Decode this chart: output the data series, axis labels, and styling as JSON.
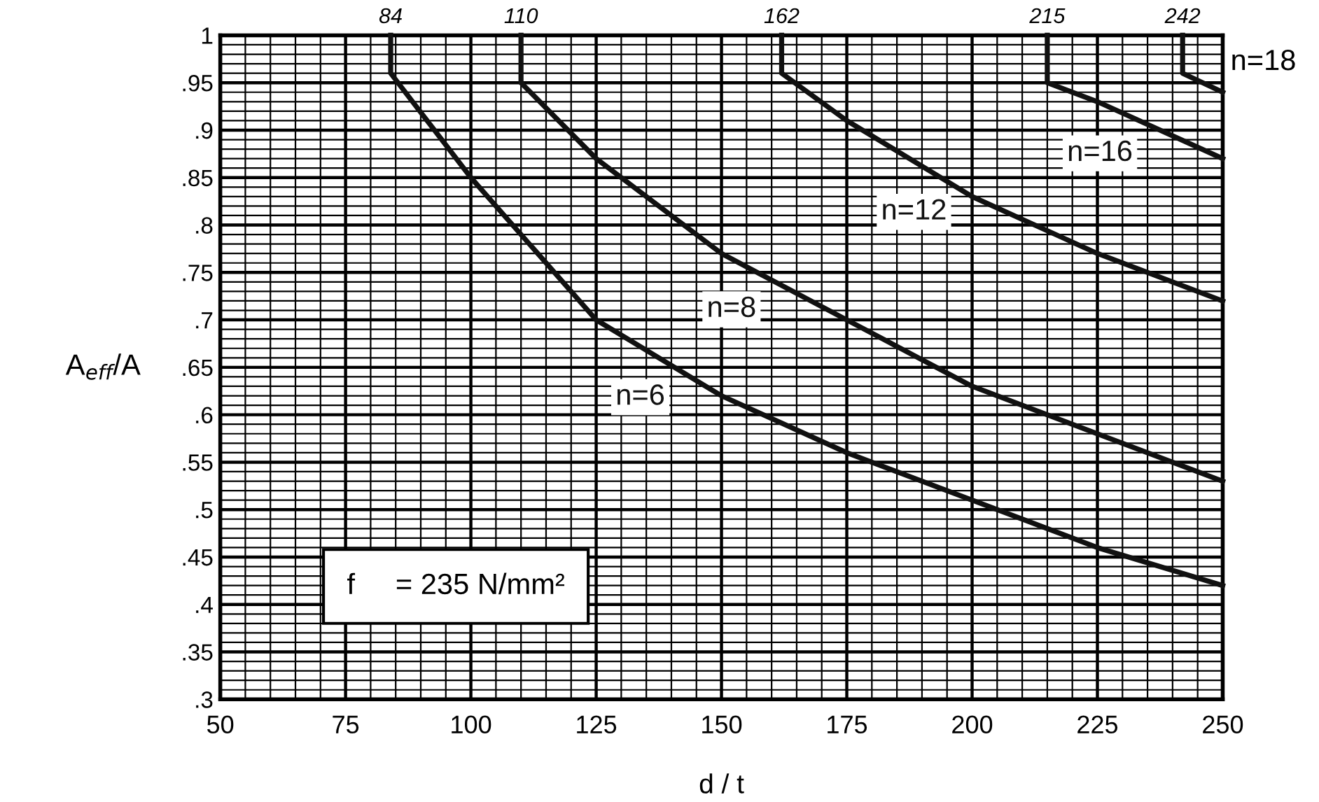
{
  "chart_data": {
    "type": "line",
    "xlabel": "d / t",
    "ylabel": "A$_{eff}$/A",
    "xlim": [
      50,
      250
    ],
    "ylim": [
      0.3,
      1
    ],
    "xticks": [
      50,
      75,
      100,
      125,
      150,
      175,
      200,
      225,
      250
    ],
    "yticks": [
      {
        "value": 0.3,
        "label": ".3"
      },
      {
        "value": 0.35,
        "label": ".35"
      },
      {
        "value": 0.4,
        "label": ".4"
      },
      {
        "value": 0.45,
        "label": ".45"
      },
      {
        "value": 0.5,
        "label": ".5"
      },
      {
        "value": 0.55,
        "label": ".55"
      },
      {
        "value": 0.6,
        "label": ".6"
      },
      {
        "value": 0.65,
        "label": ".65"
      },
      {
        "value": 0.7,
        "label": ".7"
      },
      {
        "value": 0.75,
        "label": ".75"
      },
      {
        "value": 0.8,
        "label": ".8"
      },
      {
        "value": 0.85,
        "label": ".85"
      },
      {
        "value": 0.9,
        "label": ".9"
      },
      {
        "value": 0.95,
        "label": ".95"
      },
      1
    ],
    "grid": true,
    "marker": "none",
    "line_style": "solid",
    "series": [
      {
        "name": "n=6",
        "color": "#111111",
        "x": [
          84,
          84,
          100,
          125,
          150,
          175,
          200,
          225,
          250
        ],
        "values": [
          1,
          0.96,
          0.85,
          0.7,
          0.62,
          0.56,
          0.51,
          0.46,
          0.42
        ]
      },
      {
        "name": "n=8",
        "color": "#111111",
        "x": [
          110,
          110,
          125,
          150,
          175,
          200,
          225,
          250
        ],
        "values": [
          1,
          0.95,
          0.87,
          0.77,
          0.7,
          0.63,
          0.58,
          0.53
        ]
      },
      {
        "name": "n=12",
        "color": "#111111",
        "x": [
          162,
          162,
          175,
          200,
          225,
          250
        ],
        "values": [
          1,
          0.96,
          0.91,
          0.83,
          0.77,
          0.72
        ]
      },
      {
        "name": "n=16",
        "color": "#111111",
        "x": [
          215,
          215,
          225,
          250
        ],
        "values": [
          1,
          0.95,
          0.93,
          0.87
        ]
      },
      {
        "name": "n=18",
        "color": "#111111",
        "x": [
          242,
          242,
          250
        ],
        "values": [
          1,
          0.96,
          0.94
        ]
      }
    ],
    "annotations": [
      {
        "text": "84",
        "x": 84,
        "y": 1
      },
      {
        "text": "110",
        "x": 110,
        "y": 1
      },
      {
        "text": "162",
        "x": 162,
        "y": 1
      },
      {
        "text": "215",
        "x": 215,
        "y": 1
      },
      {
        "text": "242",
        "x": 242,
        "y": 1
      },
      "f     = 235 N/mm²"
    ]
  }
}
